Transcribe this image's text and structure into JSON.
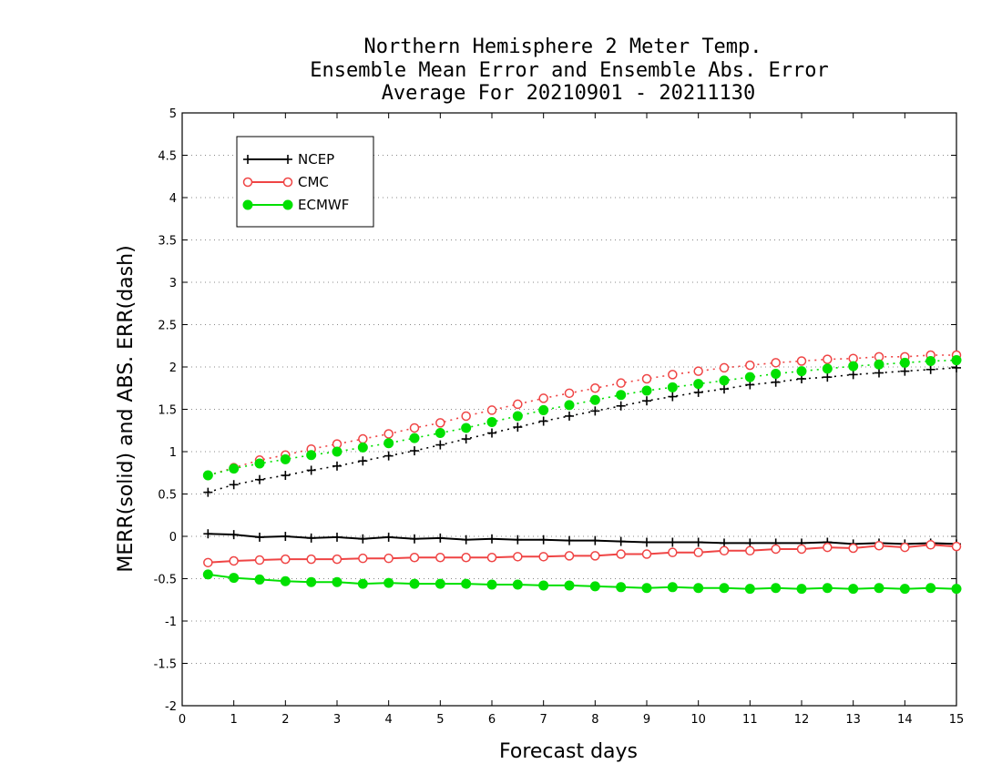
{
  "chart_data": {
    "type": "line",
    "title_lines": [
      "Northern Hemisphere 2 Meter Temp.",
      "Ensemble Mean Error and Ensemble Abs. Error",
      "Average For 20210901 - 20211130"
    ],
    "xlabel": "Forecast days",
    "ylabel": "MERR(solid) and ABS. ERR(dash)",
    "xlim": [
      0,
      15
    ],
    "ylim": [
      -2,
      5
    ],
    "x_ticks": [
      "0",
      "1",
      "2",
      "3",
      "4",
      "5",
      "6",
      "7",
      "8",
      "9",
      "10",
      "11",
      "12",
      "13",
      "14",
      "15"
    ],
    "y_ticks": [
      "-2",
      "-1.5",
      "-1",
      "-0.5",
      "0",
      "0.5",
      "1",
      "1.5",
      "2",
      "2.5",
      "3",
      "3.5",
      "4",
      "4.5",
      "5"
    ],
    "grid": "dotted horizontal",
    "legend_position": "top-left",
    "x": [
      0.5,
      1.0,
      1.5,
      2.0,
      2.5,
      3.0,
      3.5,
      4.0,
      4.5,
      5.0,
      5.5,
      6.0,
      6.5,
      7.0,
      7.5,
      8.0,
      8.5,
      9.0,
      9.5,
      10.0,
      10.5,
      11.0,
      11.5,
      12.0,
      12.5,
      13.0,
      13.5,
      14.0,
      14.5,
      15.0
    ],
    "series": [
      {
        "name": "NCEP",
        "color": "#000000",
        "marker": "plus",
        "merr": [
          0.03,
          0.02,
          -0.01,
          0.0,
          -0.02,
          -0.01,
          -0.03,
          -0.01,
          -0.03,
          -0.02,
          -0.04,
          -0.03,
          -0.04,
          -0.04,
          -0.05,
          -0.05,
          -0.06,
          -0.07,
          -0.07,
          -0.07,
          -0.08,
          -0.08,
          -0.08,
          -0.08,
          -0.07,
          -0.09,
          -0.08,
          -0.09,
          -0.08,
          -0.09
        ],
        "abs_err": [
          0.52,
          0.61,
          0.67,
          0.72,
          0.78,
          0.83,
          0.89,
          0.95,
          1.01,
          1.08,
          1.15,
          1.22,
          1.29,
          1.36,
          1.42,
          1.48,
          1.54,
          1.6,
          1.65,
          1.7,
          1.74,
          1.79,
          1.82,
          1.86,
          1.88,
          1.91,
          1.93,
          1.95,
          1.97,
          1.99
        ]
      },
      {
        "name": "CMC",
        "color": "#ef4444",
        "marker": "open-circle",
        "merr": [
          -0.31,
          -0.29,
          -0.28,
          -0.27,
          -0.27,
          -0.27,
          -0.26,
          -0.26,
          -0.25,
          -0.25,
          -0.25,
          -0.25,
          -0.24,
          -0.24,
          -0.23,
          -0.23,
          -0.21,
          -0.21,
          -0.19,
          -0.19,
          -0.17,
          -0.17,
          -0.15,
          -0.15,
          -0.13,
          -0.14,
          -0.11,
          -0.13,
          -0.1,
          -0.12
        ],
        "abs_err": [
          0.72,
          0.81,
          0.9,
          0.96,
          1.03,
          1.09,
          1.15,
          1.21,
          1.28,
          1.34,
          1.42,
          1.49,
          1.56,
          1.63,
          1.69,
          1.75,
          1.81,
          1.86,
          1.91,
          1.95,
          1.99,
          2.02,
          2.05,
          2.07,
          2.09,
          2.1,
          2.12,
          2.12,
          2.14,
          2.14
        ]
      },
      {
        "name": "ECMWF",
        "color": "#00e000",
        "marker": "filled-circle",
        "merr": [
          -0.45,
          -0.49,
          -0.51,
          -0.53,
          -0.54,
          -0.54,
          -0.56,
          -0.55,
          -0.56,
          -0.56,
          -0.56,
          -0.57,
          -0.57,
          -0.58,
          -0.58,
          -0.59,
          -0.6,
          -0.61,
          -0.6,
          -0.61,
          -0.61,
          -0.62,
          -0.61,
          -0.62,
          -0.61,
          -0.62,
          -0.61,
          -0.62,
          -0.61,
          -0.62
        ],
        "abs_err": [
          0.72,
          0.8,
          0.86,
          0.91,
          0.96,
          1.0,
          1.05,
          1.1,
          1.16,
          1.22,
          1.28,
          1.35,
          1.42,
          1.49,
          1.55,
          1.61,
          1.67,
          1.72,
          1.76,
          1.8,
          1.84,
          1.88,
          1.92,
          1.95,
          1.98,
          2.01,
          2.03,
          2.05,
          2.07,
          2.08
        ]
      }
    ]
  }
}
